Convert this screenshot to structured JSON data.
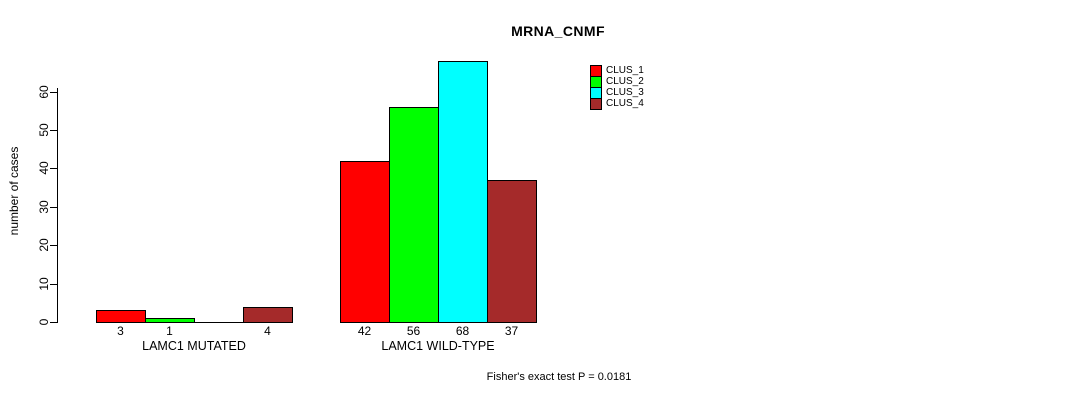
{
  "chart_data": {
    "type": "bar",
    "title": "MRNA_CNMF",
    "ylabel": "number of cases",
    "xlabel": "",
    "yticks": [
      0,
      10,
      20,
      30,
      40,
      50,
      60
    ],
    "ylim": [
      0,
      68
    ],
    "grid": false,
    "legend_position": "top-right",
    "categories": [
      "LAMC1 MUTATED",
      "LAMC1 WILD-TYPE"
    ],
    "series": [
      {
        "name": "CLUS_1",
        "color": "#ff0000",
        "values": [
          3,
          42
        ]
      },
      {
        "name": "CLUS_2",
        "color": "#00ff00",
        "values": [
          1,
          56
        ]
      },
      {
        "name": "CLUS_3",
        "color": "#00ffff",
        "values": [
          0,
          68
        ]
      },
      {
        "name": "CLUS_4",
        "color": "#a52a2a",
        "values": [
          4,
          37
        ]
      }
    ],
    "bar_value_labels": [
      [
        "3",
        "1",
        "",
        "4"
      ],
      [
        "42",
        "56",
        "68",
        "37"
      ]
    ],
    "annotation": "Fisher's exact test P = 0.0181"
  }
}
